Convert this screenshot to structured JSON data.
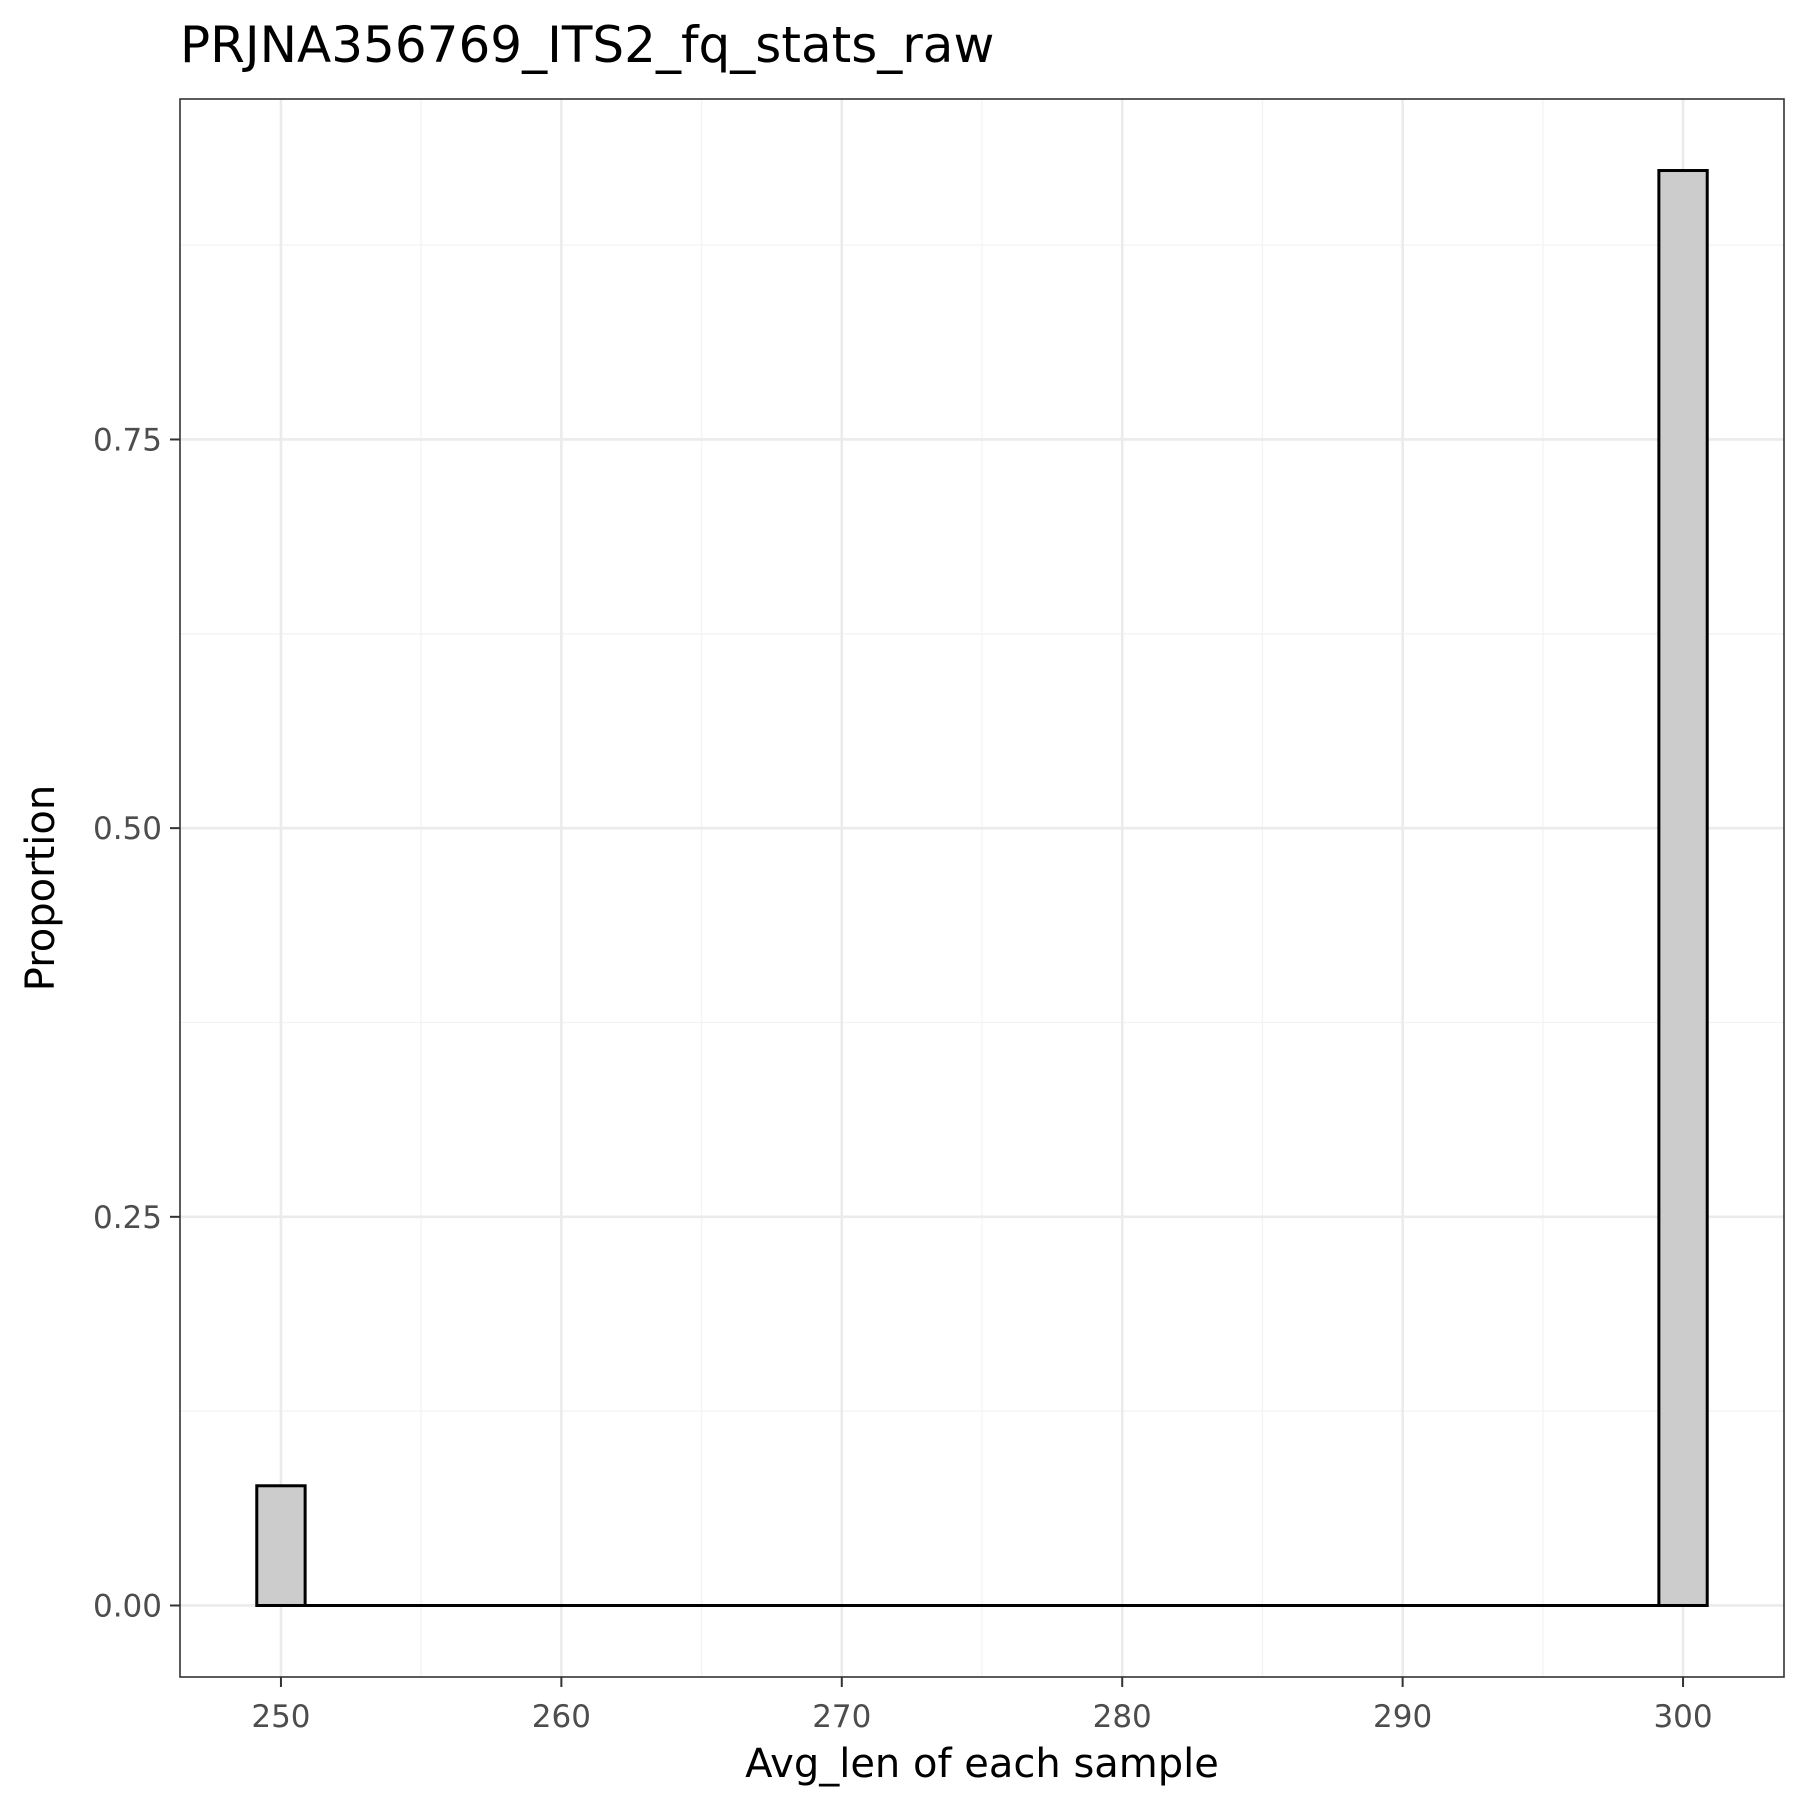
{
  "chart_data": {
    "type": "bar",
    "title": "PRJNA356769_ITS2_fq_stats_raw",
    "xlabel": "Avg_len of each sample",
    "ylabel": "Proportion",
    "bin_width": 1.724,
    "bins": [
      {
        "x": 250,
        "value": 0.077
      },
      {
        "x": 300,
        "value": 0.923
      }
    ],
    "xlim": [
      246.4,
      303.6
    ],
    "ylim": [
      -0.046,
      0.969
    ],
    "x_ticks": [
      250,
      260,
      270,
      280,
      290,
      300
    ],
    "x_tick_labels": [
      "250",
      "260",
      "270",
      "280",
      "290",
      "300"
    ],
    "y_ticks": [
      0,
      0.25,
      0.5,
      0.75
    ],
    "y_tick_labels": [
      "0.00",
      "0.25",
      "0.50",
      "0.75"
    ],
    "grid": true,
    "colors": {
      "bar_fill": "#cccccc",
      "bar_stroke": "#000000",
      "grid_major": "#ebebeb",
      "grid_minor": "#f3f3f3",
      "panel_border": "#333333",
      "tick_text": "#4d4d4d"
    }
  }
}
